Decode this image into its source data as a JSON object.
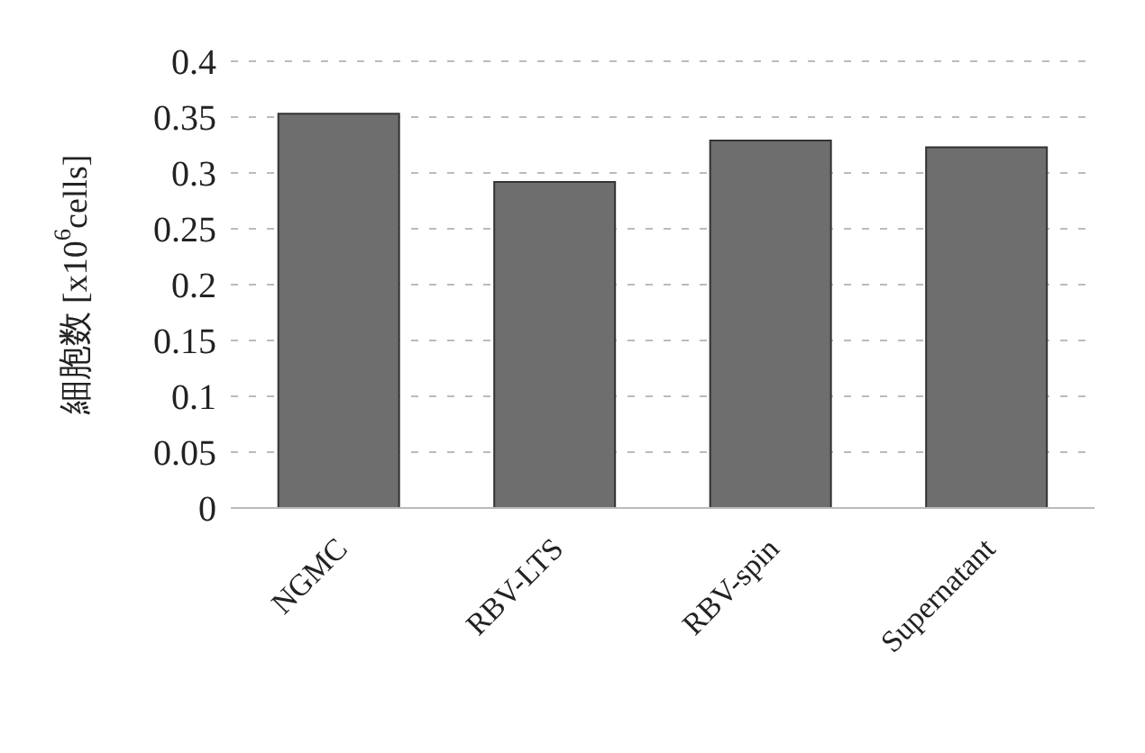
{
  "chart_data": {
    "type": "bar",
    "ylabel": "細胞数 [x10$^{6}$cells]",
    "categories": [
      "NGMC",
      "RBV-LTS",
      "RBV-spin",
      "Supernatant"
    ],
    "values": [
      0.353,
      0.292,
      0.329,
      0.323
    ],
    "color": "#6e6e6e",
    "ylim": [
      0,
      0.4
    ],
    "yticks": [
      0,
      0.05,
      0.1,
      0.15,
      0.2,
      0.25,
      0.3,
      0.35,
      0.4
    ],
    "grid": "y"
  }
}
